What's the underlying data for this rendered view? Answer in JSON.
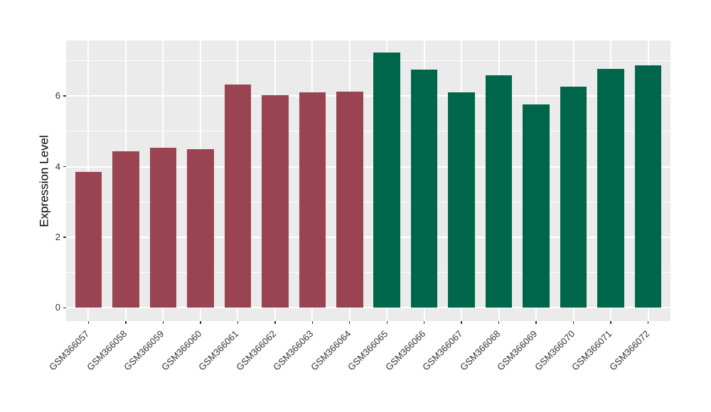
{
  "chart_data": {
    "type": "bar",
    "title": "",
    "xlabel": "",
    "ylabel": "Expression Level",
    "categories": [
      "GSM366057",
      "GSM366058",
      "GSM366059",
      "GSM366060",
      "GSM366061",
      "GSM366062",
      "GSM366063",
      "GSM366064",
      "GSM366065",
      "GSM366066",
      "GSM366067",
      "GSM366068",
      "GSM366069",
      "GSM366070",
      "GSM366071",
      "GSM366072"
    ],
    "values": [
      3.85,
      4.44,
      4.54,
      4.49,
      6.32,
      6.03,
      6.1,
      6.12,
      7.22,
      6.75,
      6.11,
      6.58,
      5.76,
      6.27,
      6.77,
      6.87
    ],
    "bar_colors": [
      "#9B4451",
      "#9B4451",
      "#9B4451",
      "#9B4451",
      "#9B4451",
      "#9B4451",
      "#9B4451",
      "#9B4451",
      "#00664B",
      "#00664B",
      "#00664B",
      "#00664B",
      "#00664B",
      "#00664B",
      "#00664B",
      "#00664B"
    ],
    "yticks": [
      0,
      2,
      4,
      6
    ],
    "minor_gridlines": [
      1,
      3,
      5,
      7
    ],
    "ylim": [
      -0.36,
      7.57
    ],
    "grid": "on",
    "legend_position": "none",
    "panel_background": "#EBEBEB",
    "grid_color": "#FFFFFF",
    "tick_color": "#333333",
    "axis_text_color": "#333333",
    "axis_title_color": "#000000"
  }
}
